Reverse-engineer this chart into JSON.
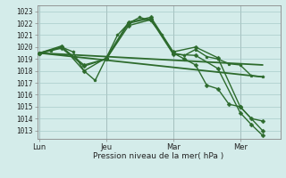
{
  "bg_color": "#d4ecea",
  "grid_color": "#a8ccca",
  "line_color": "#2d6b2d",
  "xlabel": "Pression niveau de la mer( hPa )",
  "ylim": [
    1012.3,
    1023.5
  ],
  "yticks": [
    1013,
    1014,
    1015,
    1016,
    1017,
    1018,
    1019,
    1020,
    1021,
    1022,
    1023
  ],
  "day_labels": [
    "Lun",
    "Jeu",
    "Mar",
    "Mer"
  ],
  "day_positions": [
    0,
    3,
    6,
    9
  ],
  "xlim": [
    -0.1,
    10.8
  ],
  "series": [
    {
      "x": [
        0,
        0.5,
        1.0,
        1.5,
        2.0,
        2.5,
        3.0,
        3.5,
        4.0,
        4.5,
        5.0,
        5.5,
        6.0,
        6.5,
        7.0,
        7.5,
        8.0,
        8.5,
        9.0,
        9.5,
        10.0
      ],
      "y": [
        1019.5,
        1019.7,
        1020.0,
        1019.6,
        1018.0,
        1017.2,
        1019.1,
        1021.0,
        1022.0,
        1022.5,
        1022.2,
        1021.0,
        1019.5,
        1019.3,
        1019.8,
        1019.2,
        1019.0,
        1018.6,
        1018.5,
        1017.6,
        1017.5
      ],
      "marker": "p",
      "markersize": 2.5,
      "linewidth": 1.0
    },
    {
      "x": [
        0,
        1,
        2,
        3,
        4,
        5,
        6,
        7,
        8,
        9,
        10
      ],
      "y": [
        1019.5,
        1020.1,
        1018.0,
        1019.1,
        1022.1,
        1022.5,
        1019.6,
        1020.0,
        1019.1,
        1015.0,
        1013.0
      ],
      "marker": "D",
      "markersize": 2.5,
      "linewidth": 1.0
    },
    {
      "x": [
        0,
        10
      ],
      "y": [
        1019.5,
        1017.5
      ],
      "marker": null,
      "markersize": 0,
      "linewidth": 1.3
    },
    {
      "x": [
        0,
        10
      ],
      "y": [
        1019.5,
        1018.5
      ],
      "marker": null,
      "markersize": 0,
      "linewidth": 1.3
    },
    {
      "x": [
        0,
        1,
        2,
        3,
        4,
        5,
        6,
        6.5,
        7,
        7.5,
        8,
        8.5,
        9,
        9.5,
        10
      ],
      "y": [
        1019.5,
        1020.0,
        1018.5,
        1019.0,
        1022.0,
        1022.4,
        1019.5,
        1019.0,
        1018.5,
        1016.8,
        1016.5,
        1015.2,
        1015.0,
        1014.0,
        1013.8
      ],
      "marker": "D",
      "markersize": 2.5,
      "linewidth": 1.0
    },
    {
      "x": [
        0,
        1,
        2,
        3,
        4,
        5,
        6,
        7,
        8,
        9,
        9.5,
        10
      ],
      "y": [
        1019.5,
        1019.9,
        1018.4,
        1019.0,
        1021.8,
        1022.3,
        1019.4,
        1019.3,
        1018.2,
        1014.5,
        1013.5,
        1012.6
      ],
      "marker": "D",
      "markersize": 2.5,
      "linewidth": 1.0
    }
  ]
}
